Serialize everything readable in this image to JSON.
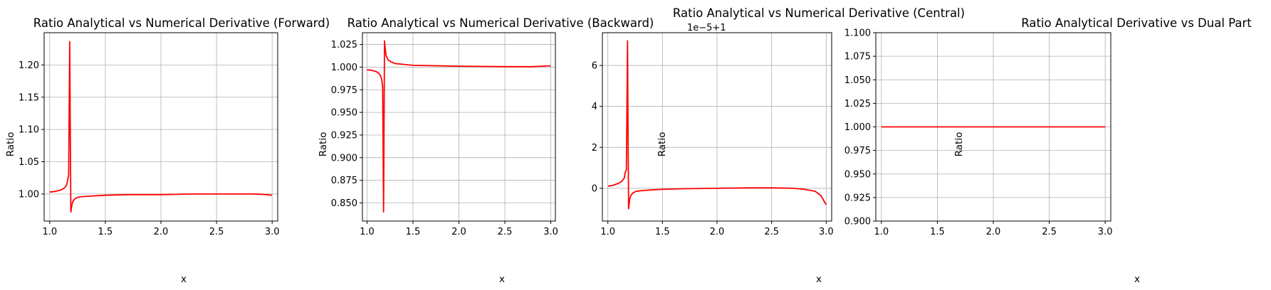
{
  "chart_data": [
    {
      "type": "line",
      "title": "Ratio Analytical vs Numerical Derivative (Forward)",
      "xlabel": "x",
      "ylabel": "Ratio",
      "xlim": [
        0.95,
        3.05
      ],
      "ylim": [
        0.958,
        1.25
      ],
      "xticks": [
        1.0,
        1.5,
        2.0,
        2.5,
        3.0
      ],
      "xtick_labels": [
        "1.0",
        "1.5",
        "2.0",
        "2.5",
        "3.0"
      ],
      "yticks": [
        1.0,
        1.05,
        1.1,
        1.15,
        1.2
      ],
      "ytick_labels": [
        "1.00",
        "1.05",
        "1.10",
        "1.15",
        "1.20"
      ],
      "offset_text": "",
      "grid": true,
      "color": "#ff0000",
      "series": [
        {
          "x": [
            1.0,
            1.05,
            1.1,
            1.13,
            1.15,
            1.16,
            1.17,
            1.18,
            1.185,
            1.19,
            1.2,
            1.21,
            1.23,
            1.26,
            1.3,
            1.4,
            1.5,
            1.7,
            2.0,
            2.3,
            2.6,
            2.8,
            2.9,
            2.95,
            3.0
          ],
          "y": [
            1.003,
            1.004,
            1.006,
            1.009,
            1.013,
            1.02,
            1.03,
            1.236,
            1.1,
            0.972,
            0.983,
            0.989,
            0.993,
            0.995,
            0.996,
            0.997,
            0.998,
            0.999,
            0.999,
            1.0,
            1.0,
            1.0,
            0.9995,
            0.999,
            0.998
          ]
        }
      ]
    },
    {
      "type": "line",
      "title": "Ratio Analytical vs Numerical Derivative (Backward)",
      "xlabel": "x",
      "ylabel": "Ratio",
      "xlim": [
        0.95,
        3.05
      ],
      "ylim": [
        0.83,
        1.038
      ],
      "xticks": [
        1.0,
        1.5,
        2.0,
        2.5,
        3.0
      ],
      "xtick_labels": [
        "1.0",
        "1.5",
        "2.0",
        "2.5",
        "3.0"
      ],
      "yticks": [
        0.85,
        0.875,
        0.9,
        0.925,
        0.95,
        0.975,
        1.0,
        1.025
      ],
      "ytick_labels": [
        "0.850",
        "0.875",
        "0.900",
        "0.925",
        "0.950",
        "0.975",
        "1.000",
        "1.025"
      ],
      "offset_text": "",
      "grid": true,
      "color": "#ff0000",
      "series": [
        {
          "x": [
            1.0,
            1.05,
            1.1,
            1.13,
            1.15,
            1.16,
            1.17,
            1.18,
            1.19,
            1.2,
            1.21,
            1.23,
            1.26,
            1.3,
            1.4,
            1.5,
            2.0,
            2.5,
            2.8,
            2.9,
            3.0
          ],
          "y": [
            0.997,
            0.9965,
            0.995,
            0.993,
            0.99,
            0.986,
            0.978,
            0.84,
            1.029,
            1.018,
            1.012,
            1.008,
            1.006,
            1.004,
            1.003,
            1.002,
            1.001,
            1.0005,
            1.0005,
            1.001,
            1.0015
          ]
        }
      ]
    },
    {
      "type": "line",
      "title": "Ratio Analytical vs Numerical Derivative (Central)",
      "xlabel": "x",
      "ylabel": "Ratio",
      "xlim": [
        0.95,
        3.05
      ],
      "ylim": [
        -1.6,
        7.6
      ],
      "xticks": [
        1.0,
        1.5,
        2.0,
        2.5,
        3.0
      ],
      "xtick_labels": [
        "1.0",
        "1.5",
        "2.0",
        "2.5",
        "3.0"
      ],
      "yticks": [
        0,
        2,
        4,
        6
      ],
      "ytick_labels": [
        "0",
        "2",
        "4",
        "6"
      ],
      "offset_text": "1e−5+1",
      "grid": true,
      "color": "#ff0000",
      "series": [
        {
          "x": [
            1.0,
            1.05,
            1.1,
            1.13,
            1.15,
            1.16,
            1.17,
            1.18,
            1.185,
            1.19,
            1.2,
            1.21,
            1.23,
            1.26,
            1.3,
            1.4,
            1.5,
            1.7,
            2.0,
            2.3,
            2.5,
            2.7,
            2.8,
            2.9,
            2.95,
            3.0
          ],
          "y": [
            0.1,
            0.15,
            0.25,
            0.35,
            0.5,
            0.8,
            0.9,
            7.2,
            3.0,
            -1.0,
            -0.55,
            -0.35,
            -0.22,
            -0.15,
            -0.12,
            -0.08,
            -0.05,
            -0.02,
            0.0,
            0.02,
            0.02,
            0.0,
            -0.05,
            -0.15,
            -0.35,
            -0.8
          ]
        }
      ]
    },
    {
      "type": "line",
      "title": "Ratio Analytical Derivative vs Dual Part",
      "xlabel": "x",
      "ylabel": "Ratio",
      "xlim": [
        0.95,
        3.05
      ],
      "ylim": [
        0.9,
        1.1
      ],
      "xticks": [
        1.0,
        1.5,
        2.0,
        2.5,
        3.0
      ],
      "xtick_labels": [
        "1.0",
        "1.5",
        "2.0",
        "2.5",
        "3.0"
      ],
      "yticks": [
        0.9,
        0.925,
        0.95,
        0.975,
        1.0,
        1.025,
        1.05,
        1.075,
        1.1
      ],
      "ytick_labels": [
        "0.900",
        "0.925",
        "0.950",
        "0.975",
        "1.000",
        "1.025",
        "1.050",
        "1.075",
        "1.100"
      ],
      "offset_text": "",
      "grid": true,
      "color": "#ff0000",
      "series": [
        {
          "x": [
            1.0,
            3.0
          ],
          "y": [
            1.0,
            1.0
          ]
        }
      ]
    }
  ]
}
